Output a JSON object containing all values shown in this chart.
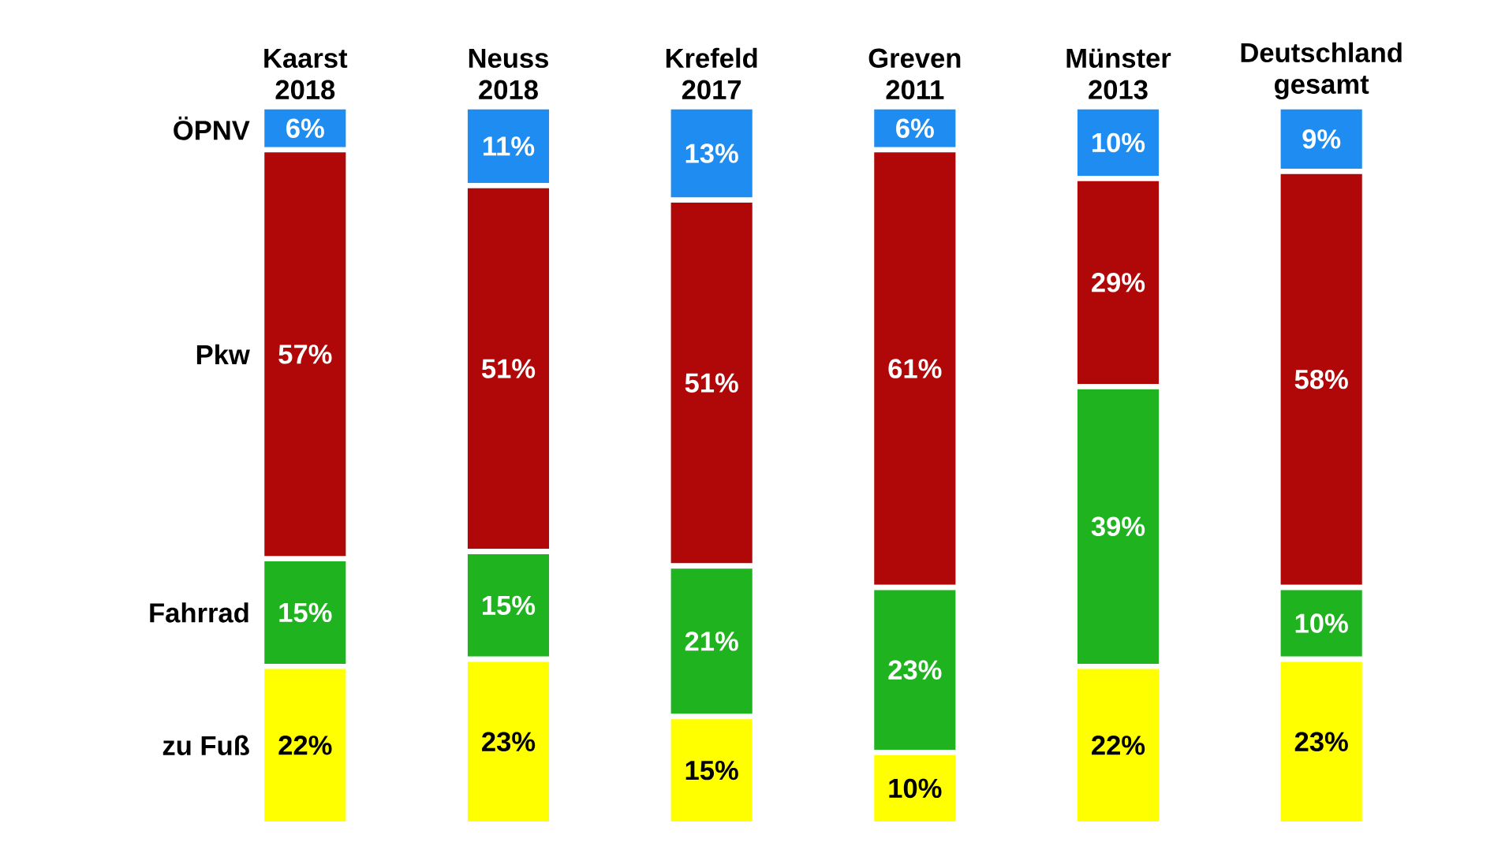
{
  "chart_data": {
    "type": "bar",
    "stacked": true,
    "tick_labels": "x",
    "categories": [
      "Kaarst 2018",
      "Neuss 2018",
      "Krefeld 2017",
      "Greven 2011",
      "Münster 2013",
      "Deutschland gesamt"
    ],
    "series": [
      {
        "name": "zu Fuß",
        "color": "#ffff00",
        "values": [
          22,
          23,
          15,
          10,
          22,
          23
        ],
        "value_labels": [
          "22%",
          "23%",
          "15%",
          "10%",
          "22%",
          "23%"
        ]
      },
      {
        "name": "Fahrrad",
        "color": "#1fb41f",
        "values": [
          15,
          15,
          21,
          23,
          39,
          10
        ],
        "value_labels": [
          "15%",
          "15%",
          "21%",
          "23%",
          "39%",
          "10%"
        ]
      },
      {
        "name": "Pkw",
        "color": "#b00808",
        "values": [
          57,
          51,
          51,
          61,
          29,
          58
        ],
        "value_labels": [
          "57%",
          "51%",
          "51%",
          "61%",
          "29%",
          "58%"
        ]
      },
      {
        "name": "ÖPNV",
        "color": "#1e8cf0",
        "values": [
          6,
          11,
          13,
          6,
          10,
          9
        ],
        "value_labels": [
          "6%",
          "11%",
          "13%",
          "6%",
          "10%",
          "9%"
        ]
      }
    ]
  }
}
